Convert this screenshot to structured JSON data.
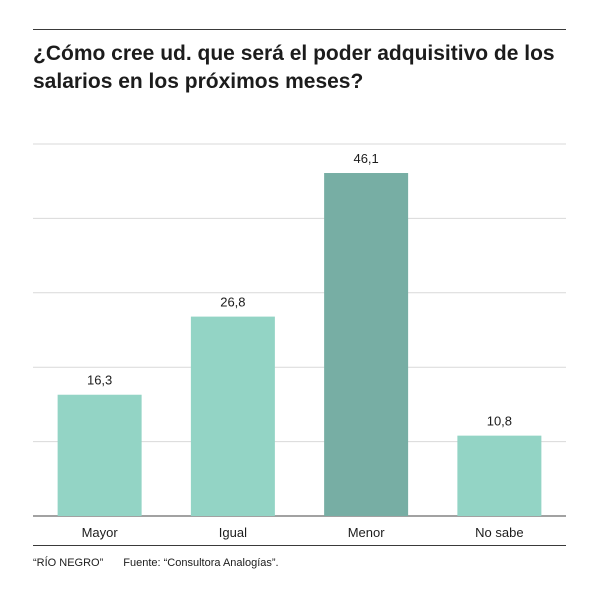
{
  "title": "¿Cómo cree ud. que será el poder adquisitivo de los salarios en los próximos meses?",
  "credit": "“RÍO NEGRO”",
  "source": "Fuente: “Consultora Analogías”.",
  "chart_data": {
    "type": "bar",
    "title": "¿Cómo cree ud. que será el poder adquisitivo de los salarios en los próximos meses?",
    "categories": [
      "Mayor",
      "Igual",
      "Menor",
      "No sabe"
    ],
    "values": [
      16.3,
      26.8,
      46.1,
      10.8
    ],
    "value_labels": [
      "16,3",
      "26,8",
      "46,1",
      "10,8"
    ],
    "highlight_index": 2,
    "ylim": [
      0,
      50
    ],
    "gridlines": [
      0,
      10,
      20,
      30,
      40,
      50
    ],
    "grid": true,
    "colors": {
      "bar": "#93d4c5",
      "highlight": "#77aea4",
      "grid": "#d9d9d9",
      "axis": "#444444"
    },
    "xlabel": "",
    "ylabel": ""
  }
}
